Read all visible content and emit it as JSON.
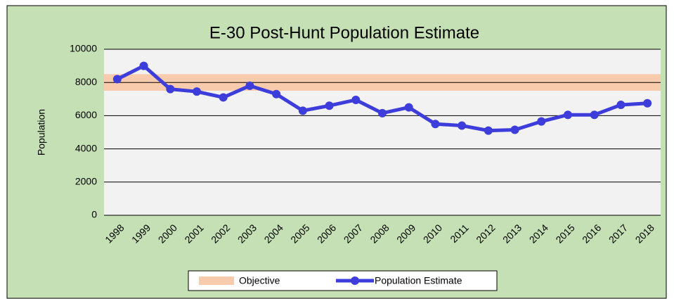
{
  "chart_data": {
    "type": "line",
    "title": "E-30 Post-Hunt Population Estimate",
    "y_label": "Population",
    "categories": [
      "1998",
      "1999",
      "2000",
      "2001",
      "2002",
      "2003",
      "2004",
      "2005",
      "2006",
      "2007",
      "2008",
      "2009",
      "2010",
      "2011",
      "2012",
      "2013",
      "2014",
      "2015",
      "2016",
      "2017",
      "2018"
    ],
    "series": [
      {
        "name": "Population Estimate",
        "color": "#3d3ddb",
        "values": [
          8200,
          9000,
          7600,
          7450,
          7100,
          7800,
          7300,
          6300,
          6600,
          6950,
          6150,
          6500,
          5500,
          5400,
          5100,
          5150,
          5650,
          6050,
          6050,
          6650,
          6750
        ]
      }
    ],
    "objective": {
      "name": "Objective",
      "color": "#f8cbad",
      "range": [
        7500,
        8500
      ]
    },
    "ylim": [
      0,
      10000
    ],
    "yticks": [
      0,
      2000,
      4000,
      6000,
      8000,
      10000
    ],
    "grid": true,
    "legend": "bottom"
  }
}
